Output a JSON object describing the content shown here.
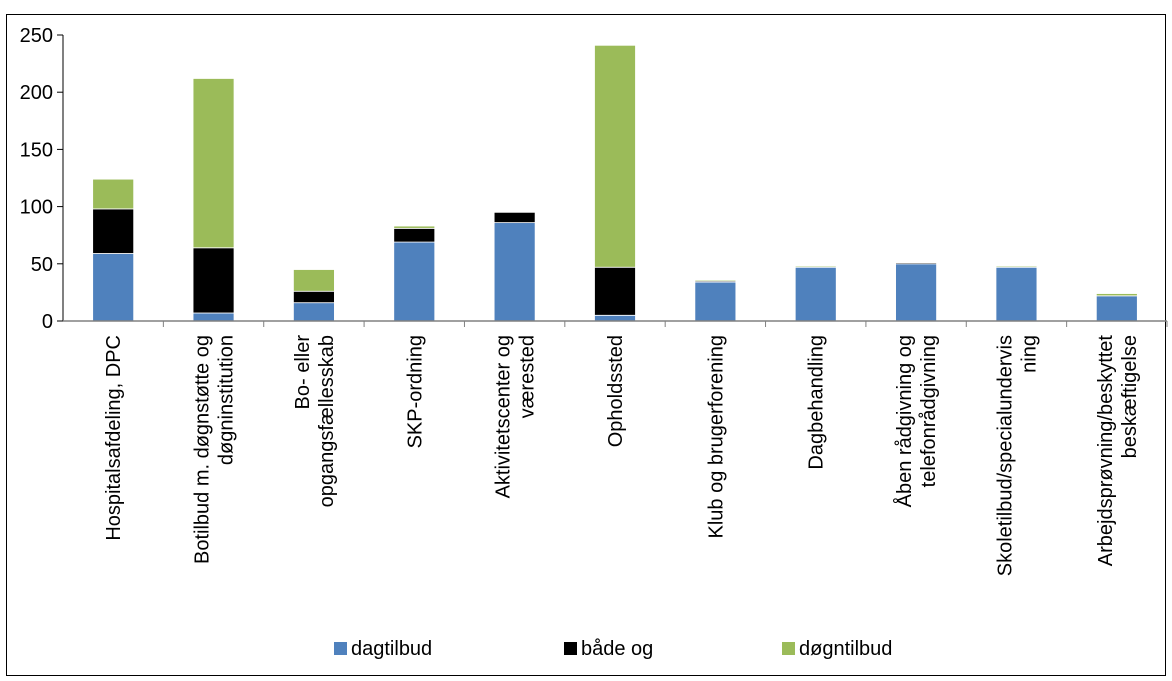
{
  "chart_data": {
    "type": "bar",
    "stacked": true,
    "title": "",
    "xlabel": "",
    "ylabel": "",
    "ylim": [
      0,
      250
    ],
    "yticks": [
      0,
      50,
      100,
      150,
      200,
      250
    ],
    "grid": false,
    "legend_position": "bottom",
    "categories": [
      [
        "Hospitalsafdeling, DPC"
      ],
      [
        "Botilbud m. døgnstøtte og",
        "døgninstitution"
      ],
      [
        "Bo- eller",
        "opgangsfællesskab"
      ],
      [
        "SKP-ordning"
      ],
      [
        "Aktivitetscenter og",
        "værested"
      ],
      [
        "Opholdssted"
      ],
      [
        "Klub og brugerforening"
      ],
      [
        "Dagbehandling"
      ],
      [
        "Åben rådgivning og",
        "telefonrådgivning"
      ],
      [
        "Skoletilbud/specialundervis",
        "ning"
      ],
      [
        "Arbejdsprøvning/beskyttet",
        "beskæftigelse"
      ]
    ],
    "series": [
      {
        "name": "dagtilbud",
        "color": "#4f81bd",
        "values": [
          59,
          7,
          16,
          69,
          86,
          5,
          34,
          47,
          50,
          47,
          22
        ]
      },
      {
        "name": "både og",
        "color": "#000000",
        "values": [
          39,
          57,
          10,
          12,
          9,
          42,
          1,
          0,
          1,
          0,
          0
        ]
      },
      {
        "name": "døgntilbud",
        "color": "#9bbb59",
        "values": [
          26,
          148,
          19,
          2,
          0,
          194,
          1,
          1,
          0,
          1,
          2
        ]
      }
    ]
  }
}
